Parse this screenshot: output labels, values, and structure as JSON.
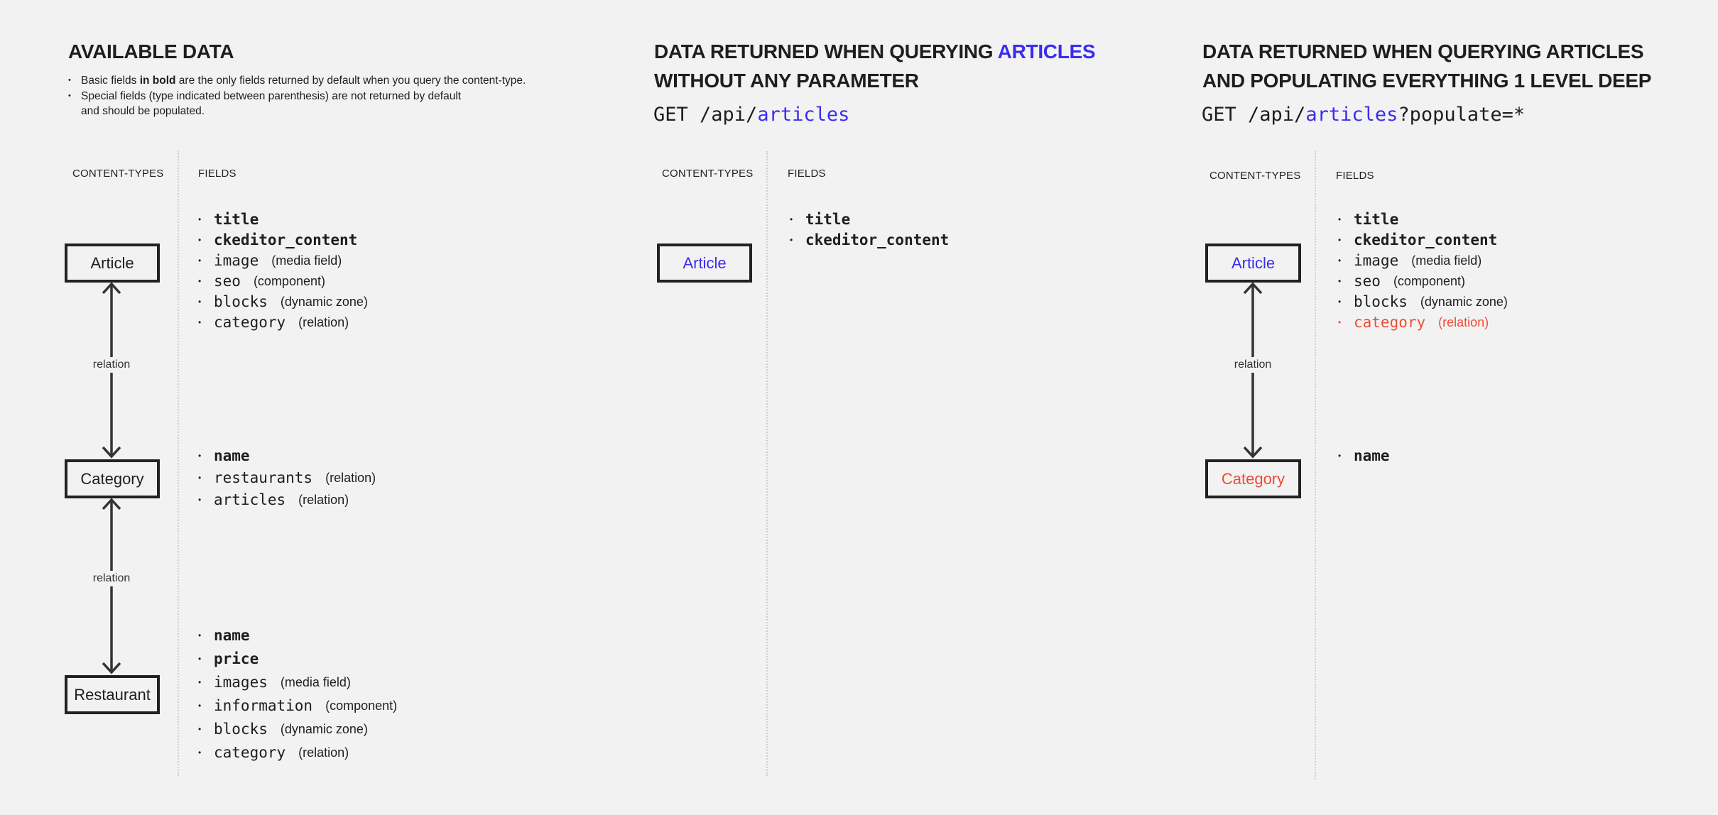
{
  "colors": {
    "background": "#f2f2f2",
    "accent_blue": "#3c2cf0",
    "accent_red": "#ee4b36",
    "ink": "#1e1e1e"
  },
  "col1": {
    "title": "AVAILABLE DATA",
    "notes": [
      {
        "pre": "Basic fields ",
        "bold": "in bold",
        "post": " are the only fields returned by default when you query the content-type."
      },
      {
        "line1": "Special fields (type indicated between parenthesis) are not returned by default",
        "line2": "and should be populated."
      }
    ],
    "header_types": "CONTENT-TYPES",
    "header_fields": "FIELDS",
    "types": [
      "Article",
      "Category",
      "Restaurant"
    ],
    "relation_labels": [
      "relation",
      "relation"
    ],
    "field_groups": [
      [
        {
          "name": "title",
          "bold": true
        },
        {
          "name": "ckeditor_content",
          "bold": true
        },
        {
          "name": "image",
          "type": "(media field)"
        },
        {
          "name": "seo",
          "type": "(component)"
        },
        {
          "name": "blocks",
          "type": "(dynamic zone)"
        },
        {
          "name": "category",
          "type": "(relation)"
        }
      ],
      [
        {
          "name": "name",
          "bold": true
        },
        {
          "name": "restaurants",
          "type": "(relation)"
        },
        {
          "name": "articles",
          "type": "(relation)"
        }
      ],
      [
        {
          "name": "name",
          "bold": true
        },
        {
          "name": "price",
          "bold": true
        },
        {
          "name": "images",
          "type": "(media field)"
        },
        {
          "name": "information",
          "type": "(component)"
        },
        {
          "name": "blocks",
          "type": "(dynamic zone)"
        },
        {
          "name": "category",
          "type": "(relation)"
        }
      ]
    ]
  },
  "col2": {
    "title_line1_pre": "DATA RETURNED WHEN QUERYING ",
    "title_line1_accent": "ARTICLES",
    "title_line2": "WITHOUT ANY PARAMETER",
    "get_prefix": "GET /api/",
    "get_accent": "articles",
    "header_types": "CONTENT-TYPES",
    "header_fields": "FIELDS",
    "types": [
      "Article"
    ],
    "field_groups": [
      [
        {
          "name": "title",
          "bold": true
        },
        {
          "name": "ckeditor_content",
          "bold": true
        }
      ]
    ]
  },
  "col3": {
    "title_line1": "DATA RETURNED WHEN QUERYING ARTICLES",
    "title_line2": "AND POPULATING EVERYTHING 1 LEVEL DEEP",
    "get_prefix": "GET /api/",
    "get_accent": "articles",
    "get_suffix": "?populate=*",
    "header_types": "CONTENT-TYPES",
    "header_fields": "FIELDS",
    "types": [
      "Article",
      "Category"
    ],
    "relation_labels": [
      "relation"
    ],
    "field_groups": [
      [
        {
          "name": "title",
          "bold": true
        },
        {
          "name": "ckeditor_content",
          "bold": true
        },
        {
          "name": "image",
          "type": "(media field)"
        },
        {
          "name": "seo",
          "type": "(component)"
        },
        {
          "name": "blocks",
          "type": "(dynamic zone)"
        },
        {
          "name": "category",
          "type": "(relation)",
          "highlight": "red"
        }
      ],
      [
        {
          "name": "name",
          "bold": true
        }
      ]
    ]
  }
}
